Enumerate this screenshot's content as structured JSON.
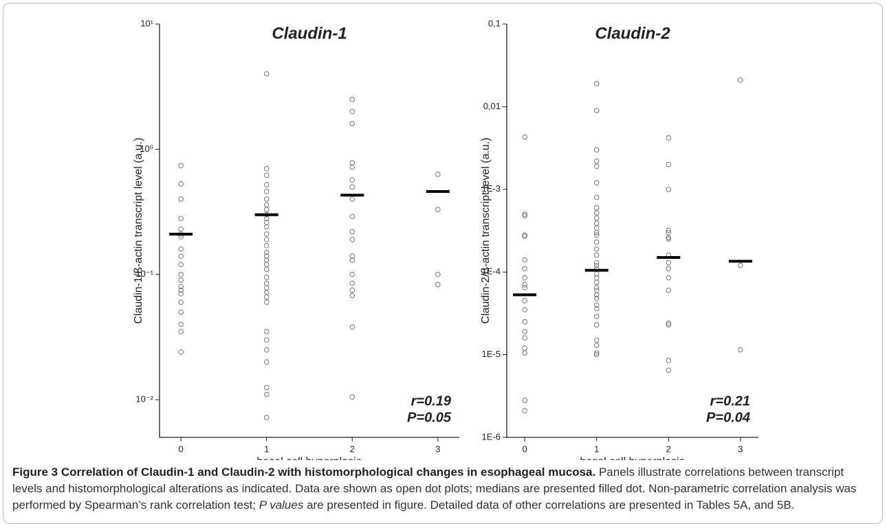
{
  "chart_data": [
    {
      "type": "strip",
      "title": "Claudin-1",
      "y_label": "Claudin-1/ß-actin transcript level (a.u.)",
      "x_label": "basal cell hyperplasia",
      "categories": [
        "0",
        "1",
        "2",
        "3"
      ],
      "values": [
        [
          0.74,
          0.53,
          0.4,
          0.28,
          0.23,
          0.21,
          0.2,
          0.16,
          0.14,
          0.12,
          0.1,
          0.09,
          0.08,
          0.075,
          0.07,
          0.06,
          0.05,
          0.04,
          0.035,
          0.024
        ],
        [
          4.0,
          0.7,
          0.62,
          0.52,
          0.46,
          0.4,
          0.36,
          0.33,
          0.3,
          0.28,
          0.26,
          0.24,
          0.21,
          0.19,
          0.17,
          0.15,
          0.14,
          0.13,
          0.12,
          0.11,
          0.095,
          0.085,
          0.078,
          0.072,
          0.066,
          0.06,
          0.035,
          0.03,
          0.025,
          0.02,
          0.0125,
          0.011,
          0.0072
        ],
        [
          2.5,
          2.0,
          1.6,
          0.78,
          0.72,
          0.57,
          0.5,
          0.4,
          0.29,
          0.22,
          0.19,
          0.14,
          0.13,
          0.1,
          0.085,
          0.075,
          0.068,
          0.038,
          0.0105
        ],
        [
          0.63,
          0.33,
          0.1,
          0.083
        ]
      ],
      "medians": [
        0.21,
        0.3,
        0.43,
        0.46
      ],
      "color": "#777777",
      "median_color": "#000000",
      "log_y": true,
      "ylim": [
        0.005,
        10
      ],
      "xlim": [
        -0.25,
        3.25
      ],
      "xticks": [
        0,
        1,
        2,
        3
      ],
      "yticks": [
        {
          "value": 10,
          "label": "10¹"
        },
        {
          "value": 1,
          "label": "10⁰"
        },
        {
          "value": 0.1,
          "label": "10⁻¹"
        },
        {
          "value": 0.01,
          "label": "10⁻²"
        }
      ],
      "annotations": [
        "r=0.19",
        "P=0.05"
      ]
    },
    {
      "type": "strip",
      "title": "Claudin-2",
      "y_label": "Claudin-2/ß-actin transcript level (a.u.)",
      "x_label": "basal cell hyperplasia",
      "categories": [
        "0",
        "1",
        "2",
        "3"
      ],
      "values": [
        [
          0.0043,
          0.0005,
          0.00048,
          0.00028,
          0.00027,
          0.00014,
          0.00011,
          8.5e-05,
          7e-05,
          6.5e-05,
          4.5e-05,
          3.5e-05,
          2.5e-05,
          1.9e-05,
          1.6e-05,
          1.2e-05,
          1.05e-05,
          2.8e-06,
          2.1e-06
        ],
        [
          0.019,
          0.009,
          0.003,
          0.0022,
          0.0019,
          0.0012,
          0.0008,
          0.0006,
          0.00052,
          0.00045,
          0.00039,
          0.00034,
          0.0003,
          0.00028,
          0.00023,
          0.00019,
          0.00016,
          0.00013,
          0.00012,
          0.00011,
          9.5e-05,
          8.5e-05,
          7.5e-05,
          6.5e-05,
          6e-05,
          5.3e-05,
          4.8e-05,
          4e-05,
          3.6e-05,
          2.9e-05,
          2.3e-05,
          1.5e-05,
          1.3e-05,
          1.05e-05,
          1e-05
        ],
        [
          0.0042,
          0.002,
          0.001,
          0.00032,
          0.0003,
          0.00026,
          0.00025,
          0.00016,
          0.00013,
          0.00011,
          8.5e-05,
          6e-05,
          2.4e-05,
          2.3e-05,
          8.5e-06,
          6.5e-06
        ],
        [
          0.021,
          0.00012,
          1.15e-05
        ]
      ],
      "medians": [
        5.3e-05,
        0.000105,
        0.00015,
        0.000135
      ],
      "color": "#777777",
      "median_color": "#000000",
      "log_y": true,
      "ylim": [
        1e-06,
        0.1
      ],
      "xlim": [
        -0.25,
        3.25
      ],
      "xticks": [
        0,
        1,
        2,
        3
      ],
      "yticks": [
        {
          "value": 0.1,
          "label": "0,1"
        },
        {
          "value": 0.01,
          "label": "0,01"
        },
        {
          "value": 0.001,
          "label": "1E-3"
        },
        {
          "value": 0.0001,
          "label": "1E-4"
        },
        {
          "value": 1e-05,
          "label": "1E-5"
        },
        {
          "value": 1e-06,
          "label": "1E-6"
        }
      ],
      "annotations": [
        "r=0.21",
        "P=0.04"
      ]
    }
  ],
  "caption": {
    "label": "Figure 3",
    "title": "Correlation of Claudin-1 and Claudin-2 with histomorphological changes in esophageal mucosa.",
    "text_1": "Panels illustrate correlations between transcript levels and histomorphological alterations as indicated. Data are shown as open dot plots; medians are presented filled dot. Non-parametric correlation analysis was performed by Spearman’s rank correlation test;",
    "text_italic": "P values",
    "text_2": "are presented in figure. Detailed data of other correlations are presented in Tables 5A, and 5B."
  }
}
